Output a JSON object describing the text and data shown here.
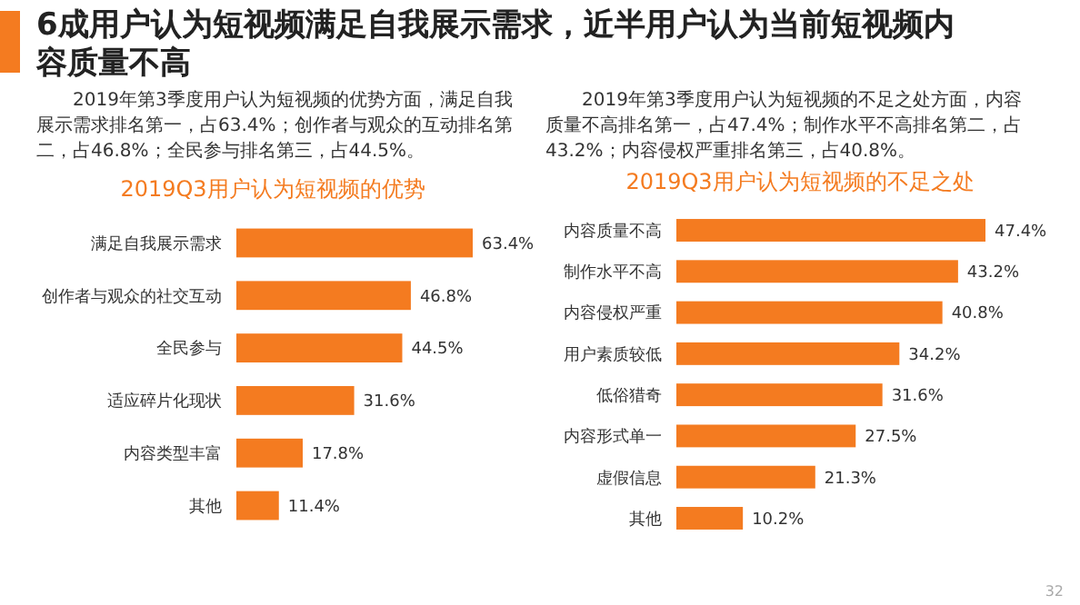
{
  "chart_data": [
    {
      "type": "other",
      "title": "6成用户认为短视频满足自我展示需求，近半用户认为当前短视频内容质量不高",
      "annotations": [
        "2019年第3季度用户认为短视频的优势方面，满足自我展示需求排名第一，占63.4%；创作者与观众的互动排名第二，占46.8%；全民参与排名第三，占44.5%。",
        "2019年第3季度用户认为短视频的不足之处方面，内容质量不高排名第一，占47.4%；制作水平不高排名第二，占43.2%；内容侵权严重排名第三，占40.8%。"
      ]
    },
    {
      "type": "bar",
      "orientation": "horizontal",
      "title": "2019Q3用户认为短视频的优势",
      "categories": [
        "满足自我展示需求",
        "创作者与观众的社交互动",
        "全民参与",
        "适应碎片化现状",
        "内容类型丰富",
        "其他"
      ],
      "values": [
        63.4,
        46.8,
        44.5,
        31.6,
        17.8,
        11.4
      ],
      "value_labels": [
        "63.4%",
        "46.8%",
        "44.5%",
        "31.6%",
        "17.8%",
        "11.4%"
      ],
      "color": "#f47b20"
    },
    {
      "type": "bar",
      "orientation": "horizontal",
      "title": "2019Q3用户认为短视频的不足之处",
      "categories": [
        "内容质量不高",
        "制作水平不高",
        "内容侵权严重",
        "用户素质较低",
        "低俗猎奇",
        "内容形式单一",
        "虚假信息",
        "其他"
      ],
      "values": [
        47.4,
        43.2,
        40.8,
        34.2,
        31.6,
        27.5,
        21.3,
        10.2
      ],
      "value_labels": [
        "47.4%",
        "43.2%",
        "40.8%",
        "34.2%",
        "31.6%",
        "27.5%",
        "21.3%",
        "10.2%"
      ],
      "color": "#f47b20",
      "annotations": [
        "32"
      ]
    }
  ]
}
